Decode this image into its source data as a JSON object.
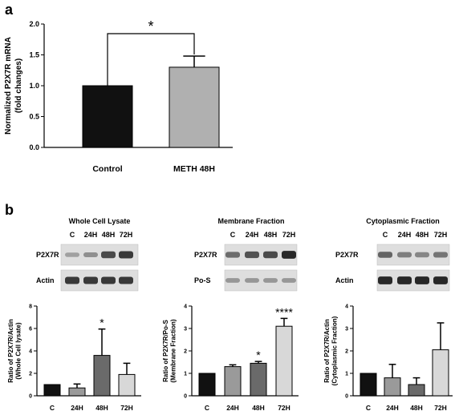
{
  "panels": {
    "a": {
      "letter": "a"
    },
    "b": {
      "letter": "b",
      "blots": [
        {
          "title": "Whole Cell Lysate",
          "lanes": [
            "C",
            "24H",
            "48H",
            "72H"
          ],
          "rows": [
            {
              "label": "P2X7R",
              "intensity": [
                0.25,
                0.35,
                0.75,
                0.85
              ]
            },
            {
              "label": "Actin",
              "intensity": [
                0.85,
                0.85,
                0.85,
                0.85
              ]
            }
          ]
        },
        {
          "title": "Membrane Fraction",
          "lanes": [
            "C",
            "24H",
            "48H",
            "72H"
          ],
          "rows": [
            {
              "label": "P2X7R",
              "intensity": [
                0.55,
                0.7,
                0.75,
                0.95
              ]
            },
            {
              "label": "Po-S",
              "intensity": [
                0.3,
                0.3,
                0.3,
                0.3
              ]
            }
          ]
        },
        {
          "title": "Cytoplasmic Fraction",
          "lanes": [
            "C",
            "24H",
            "48H",
            "72H"
          ],
          "rows": [
            {
              "label": "P2X7R",
              "intensity": [
                0.6,
                0.45,
                0.4,
                0.5
              ]
            },
            {
              "label": "Actin",
              "intensity": [
                0.95,
                0.95,
                0.95,
                0.95
              ]
            }
          ]
        }
      ]
    }
  },
  "chart_data": [
    {
      "type": "bar",
      "panel": "a",
      "categories": [
        "Control",
        "METH 48H"
      ],
      "values": [
        1.0,
        1.3
      ],
      "errors": [
        0,
        0.18
      ],
      "colors": [
        "#111111",
        "#b0b0b0"
      ],
      "ylabel": "Normalized P2X7R mRNA\n(fold changes)",
      "ylim": [
        0,
        2.0
      ],
      "yticks": [
        "0.0",
        "0.5",
        "1.0",
        "1.5",
        "2.0"
      ],
      "significance": {
        "from": 0,
        "to": 1,
        "label": "*"
      }
    },
    {
      "type": "bar",
      "panel": "b-whole-cell",
      "categories": [
        "C",
        "24H",
        "48H",
        "72H"
      ],
      "values": [
        1.0,
        0.7,
        3.6,
        1.9
      ],
      "errors": [
        0,
        0.35,
        2.35,
        1.0
      ],
      "colors": [
        "#111111",
        "#9a9a9a",
        "#6a6a6a",
        "#d8d8d8"
      ],
      "ylabel": "Ratio of P2X7R/Actin\n(Whole Cell lysate)",
      "ylim": [
        0,
        8
      ],
      "yticks": [
        "0",
        "2",
        "4",
        "6",
        "8"
      ],
      "stars": [
        "",
        "",
        "*",
        ""
      ]
    },
    {
      "type": "bar",
      "panel": "b-membrane",
      "categories": [
        "C",
        "24H",
        "48H",
        "72H"
      ],
      "values": [
        1.0,
        1.3,
        1.45,
        3.1
      ],
      "errors": [
        0,
        0.08,
        0.08,
        0.35
      ],
      "colors": [
        "#111111",
        "#9a9a9a",
        "#6a6a6a",
        "#d8d8d8"
      ],
      "ylabel": "Ratio of P2X7R/Po-S\n(Membrane Fraction)",
      "ylim": [
        0,
        4
      ],
      "yticks": [
        "0",
        "1",
        "2",
        "3",
        "4"
      ],
      "stars": [
        "",
        "",
        "*",
        "****"
      ]
    },
    {
      "type": "bar",
      "panel": "b-cytoplasmic",
      "categories": [
        "C",
        "24H",
        "48H",
        "72H"
      ],
      "values": [
        1.0,
        0.8,
        0.5,
        2.05
      ],
      "errors": [
        0,
        0.6,
        0.3,
        1.2
      ],
      "colors": [
        "#111111",
        "#9a9a9a",
        "#6a6a6a",
        "#d8d8d8"
      ],
      "ylabel": "Ratio of P2X7R/Actin\n(Cytoplasmic Fraction)",
      "ylim": [
        0,
        4
      ],
      "yticks": [
        "0",
        "1",
        "2",
        "3",
        "4"
      ],
      "stars": [
        "",
        "",
        "",
        ""
      ]
    }
  ]
}
